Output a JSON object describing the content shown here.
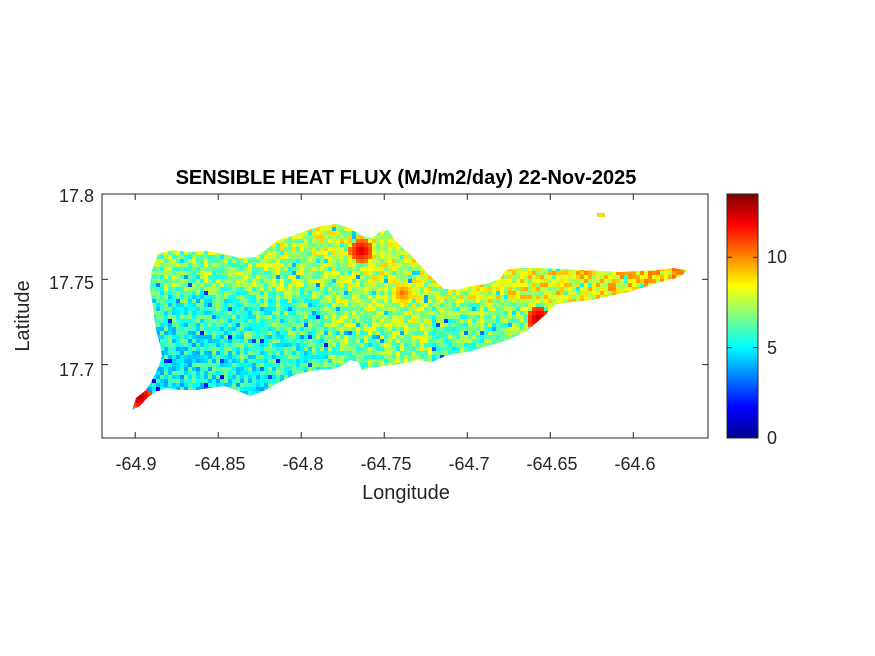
{
  "title": "SENSIBLE HEAT FLUX (MJ/m2/day) 22-Nov-2025",
  "xlabel": "Longitude",
  "ylabel": "Latitude",
  "x_ticks": [
    "-64.9",
    "-64.85",
    "-64.8",
    "-64.75",
    "-64.7",
    "-64.65",
    "-64.6"
  ],
  "y_ticks": [
    "17.8",
    "17.75",
    "17.7"
  ],
  "colorbar": {
    "colormap": "jet",
    "range": [
      0,
      13.5
    ],
    "tick_labels": [
      "0",
      "5",
      "10"
    ]
  },
  "map_data": {
    "type": "raster-map",
    "variable": "Sensible heat flux",
    "units": "MJ/m2/day",
    "date": "22-Nov-2025",
    "xlim": [
      -64.92,
      -64.555
    ],
    "ylim": [
      17.657,
      17.8
    ],
    "grid": false,
    "typical_range": [
      4,
      10
    ],
    "hotspots": [
      {
        "lon": -64.898,
        "lat": 17.682,
        "value": 13
      },
      {
        "lon": -64.765,
        "lat": 17.768,
        "value": 12.5
      },
      {
        "lon": -64.658,
        "lat": 17.728,
        "value": 13
      },
      {
        "lon": -64.74,
        "lat": 17.743,
        "value": 10.5
      }
    ]
  }
}
